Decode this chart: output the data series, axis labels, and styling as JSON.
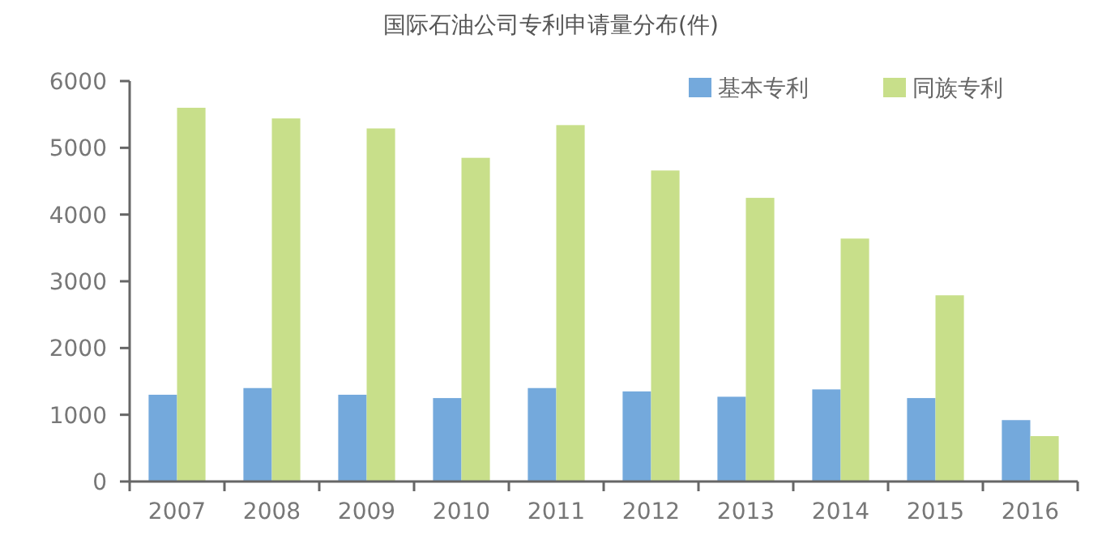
{
  "chart_data": {
    "type": "bar",
    "title": "国际石油公司专利申请量分布(件)",
    "categories": [
      "2007",
      "2008",
      "2009",
      "2010",
      "2011",
      "2012",
      "2013",
      "2014",
      "2015",
      "2016"
    ],
    "series": [
      {
        "name": "基本专利",
        "color": "#74a9dc",
        "values": [
          1300,
          1400,
          1300,
          1250,
          1400,
          1350,
          1270,
          1380,
          1250,
          920
        ]
      },
      {
        "name": "同族专利",
        "color": "#c8df8a",
        "values": [
          5600,
          5440,
          5290,
          4850,
          5340,
          4660,
          4250,
          3640,
          2790,
          680
        ]
      }
    ],
    "ylim": [
      0,
      6000
    ],
    "yticks": [
      0,
      1000,
      2000,
      3000,
      4000,
      5000,
      6000
    ],
    "grid": false,
    "legend": "top right"
  }
}
